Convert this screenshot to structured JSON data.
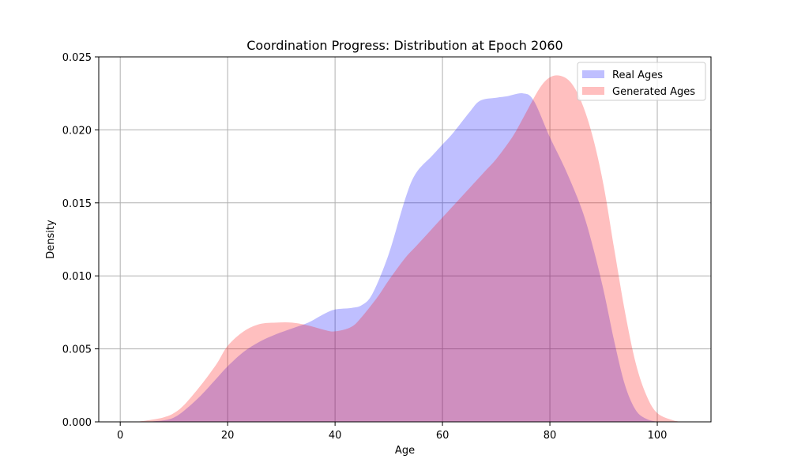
{
  "chart_data": {
    "type": "area",
    "title": "Coordination Progress: Distribution at Epoch 2060",
    "xlabel": "Age",
    "ylabel": "Density",
    "xlim": [
      -4,
      110
    ],
    "ylim": [
      0,
      0.025
    ],
    "xticks": [
      0,
      20,
      40,
      60,
      80,
      100
    ],
    "xtick_labels": [
      "0",
      "20",
      "40",
      "60",
      "80",
      "100"
    ],
    "yticks": [
      0,
      0.005,
      0.01,
      0.015,
      0.02,
      0.025
    ],
    "ytick_labels": [
      "0.000",
      "0.005",
      "0.010",
      "0.015",
      "0.020",
      "0.025"
    ],
    "grid": true,
    "legend_position": "top-right",
    "series": [
      {
        "name": "Real Ages",
        "color": "#0000ff",
        "alpha": 0.25,
        "x": [
          5,
          8,
          10,
          12,
          15,
          18,
          20,
          23,
          26,
          29,
          32,
          35,
          38,
          40,
          43,
          45,
          47,
          50,
          53,
          55,
          58,
          60,
          62,
          65,
          67,
          70,
          72,
          75,
          77,
          80,
          83,
          86,
          88,
          90,
          92,
          94,
          96,
          98,
          100
        ],
        "y": [
          0.0,
          0.0001,
          0.0003,
          0.0008,
          0.0018,
          0.003,
          0.0038,
          0.0048,
          0.0055,
          0.006,
          0.0064,
          0.0068,
          0.0074,
          0.0077,
          0.0078,
          0.008,
          0.0088,
          0.0115,
          0.0152,
          0.017,
          0.0182,
          0.019,
          0.0198,
          0.0212,
          0.022,
          0.0222,
          0.0223,
          0.0225,
          0.022,
          0.0195,
          0.0172,
          0.0145,
          0.012,
          0.009,
          0.0055,
          0.0025,
          0.0008,
          0.0002,
          0.0
        ]
      },
      {
        "name": "Generated Ages",
        "color": "#ff0000",
        "alpha": 0.25,
        "x": [
          3,
          5,
          8,
          10,
          12,
          15,
          18,
          20,
          23,
          26,
          29,
          32,
          35,
          38,
          40,
          43,
          45,
          48,
          50,
          53,
          55,
          58,
          60,
          63,
          65,
          68,
          70,
          73,
          75,
          78,
          80,
          82,
          84,
          86,
          88,
          90,
          92,
          94,
          96,
          98,
          100,
          103,
          105
        ],
        "y": [
          0.0,
          0.0001,
          0.0003,
          0.0006,
          0.0012,
          0.0025,
          0.004,
          0.0052,
          0.0062,
          0.0067,
          0.0068,
          0.0068,
          0.0066,
          0.0063,
          0.0062,
          0.0065,
          0.0072,
          0.0086,
          0.0097,
          0.0112,
          0.012,
          0.0132,
          0.014,
          0.0152,
          0.016,
          0.0172,
          0.018,
          0.0195,
          0.0208,
          0.0228,
          0.0236,
          0.0237,
          0.0232,
          0.0218,
          0.0195,
          0.0162,
          0.0118,
          0.0075,
          0.004,
          0.0018,
          0.0006,
          0.0001,
          0.0
        ]
      }
    ]
  }
}
